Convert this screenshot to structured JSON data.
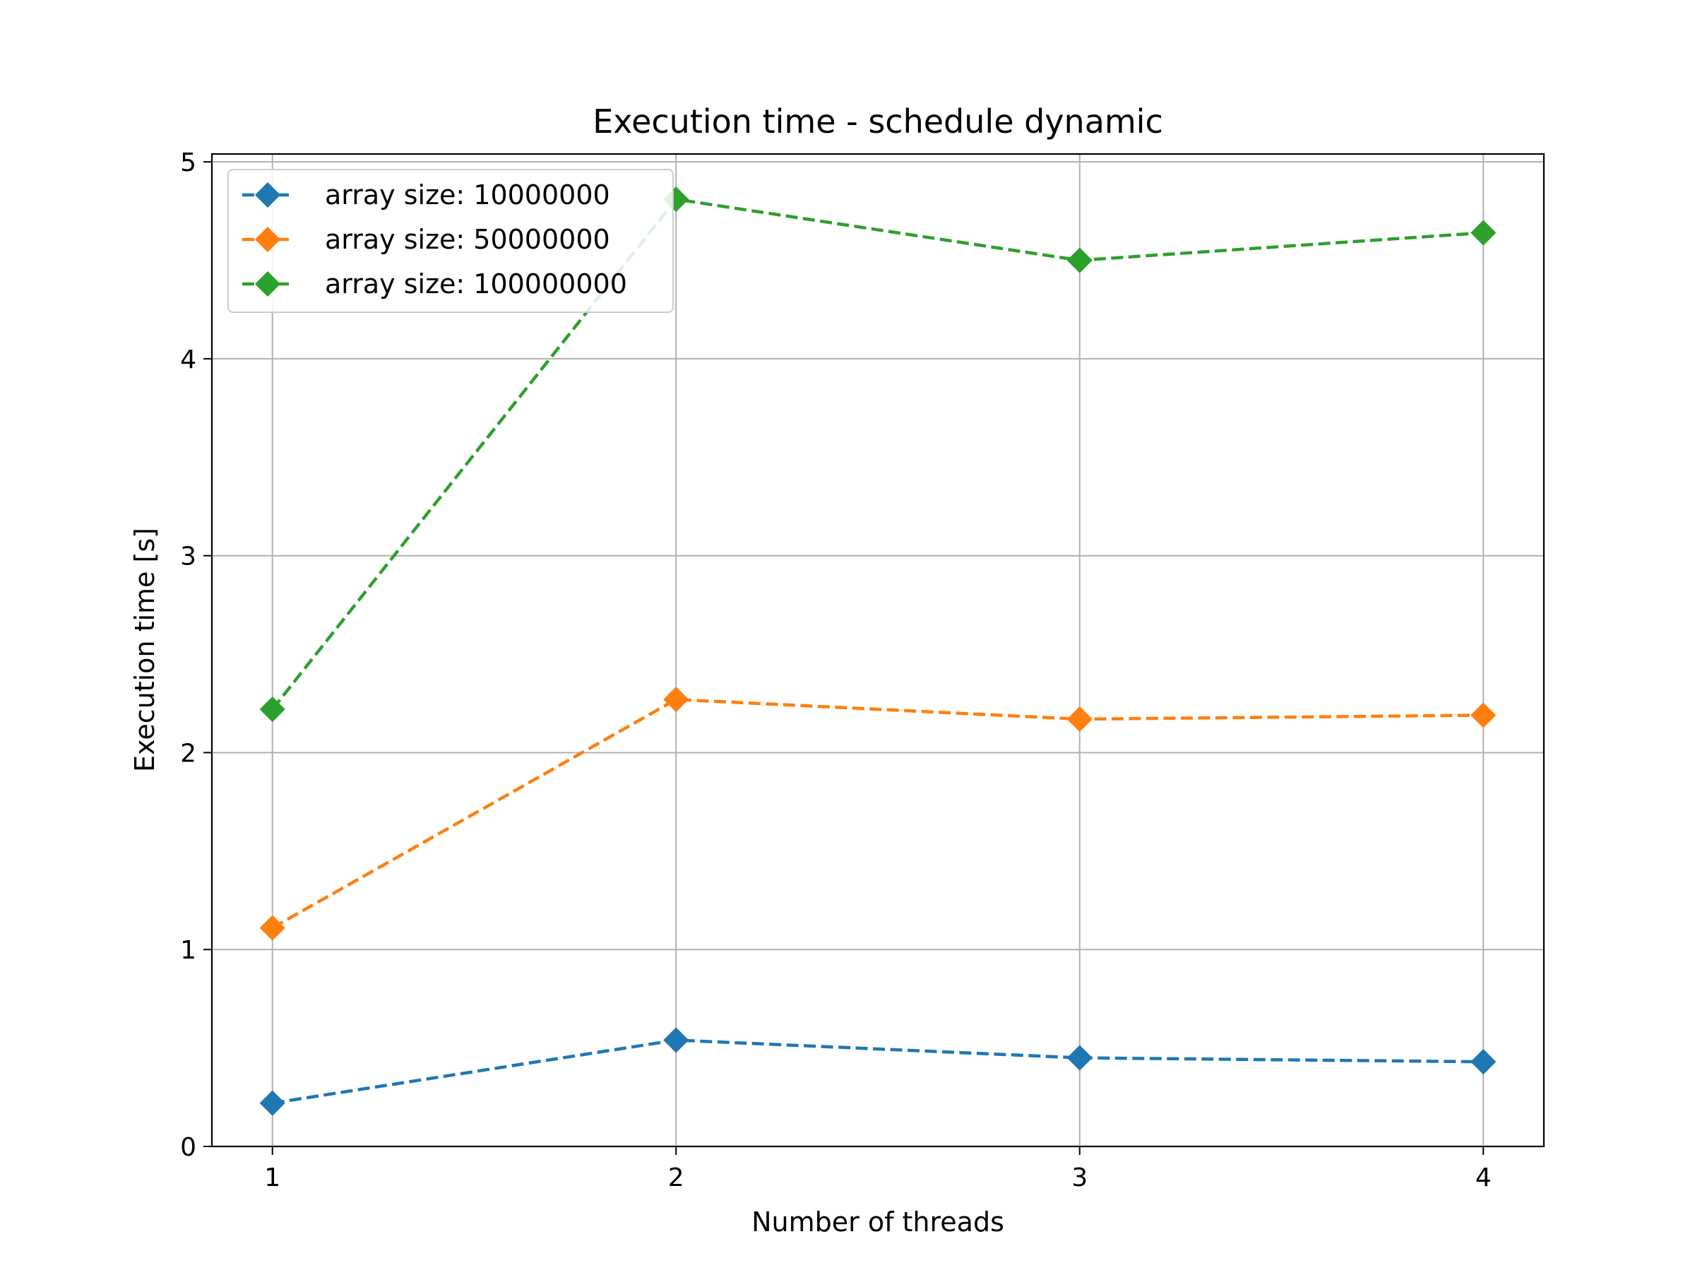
{
  "chart_data": {
    "type": "line",
    "title": "Execution time - schedule dynamic",
    "xlabel": "Number of threads",
    "ylabel": "Execution time [s]",
    "x": [
      1,
      2,
      3,
      4
    ],
    "xticks": [
      "1",
      "2",
      "3",
      "4"
    ],
    "yticks": [
      "0",
      "1",
      "2",
      "3",
      "4",
      "5"
    ],
    "xlim": [
      0.85,
      4.15
    ],
    "ylim": [
      0,
      5.04
    ],
    "grid": true,
    "legend_position": "top-left",
    "line_style": "dashed",
    "marker": "diamond",
    "series": [
      {
        "name": "array size: 10000000",
        "color": "#1f77b4",
        "values": [
          0.22,
          0.54,
          0.45,
          0.43
        ]
      },
      {
        "name": "array size: 50000000",
        "color": "#ff7f0e",
        "values": [
          1.11,
          2.27,
          2.17,
          2.19
        ]
      },
      {
        "name": "array size: 100000000",
        "color": "#2ca02c",
        "values": [
          2.22,
          4.81,
          4.5,
          4.64
        ]
      }
    ]
  }
}
